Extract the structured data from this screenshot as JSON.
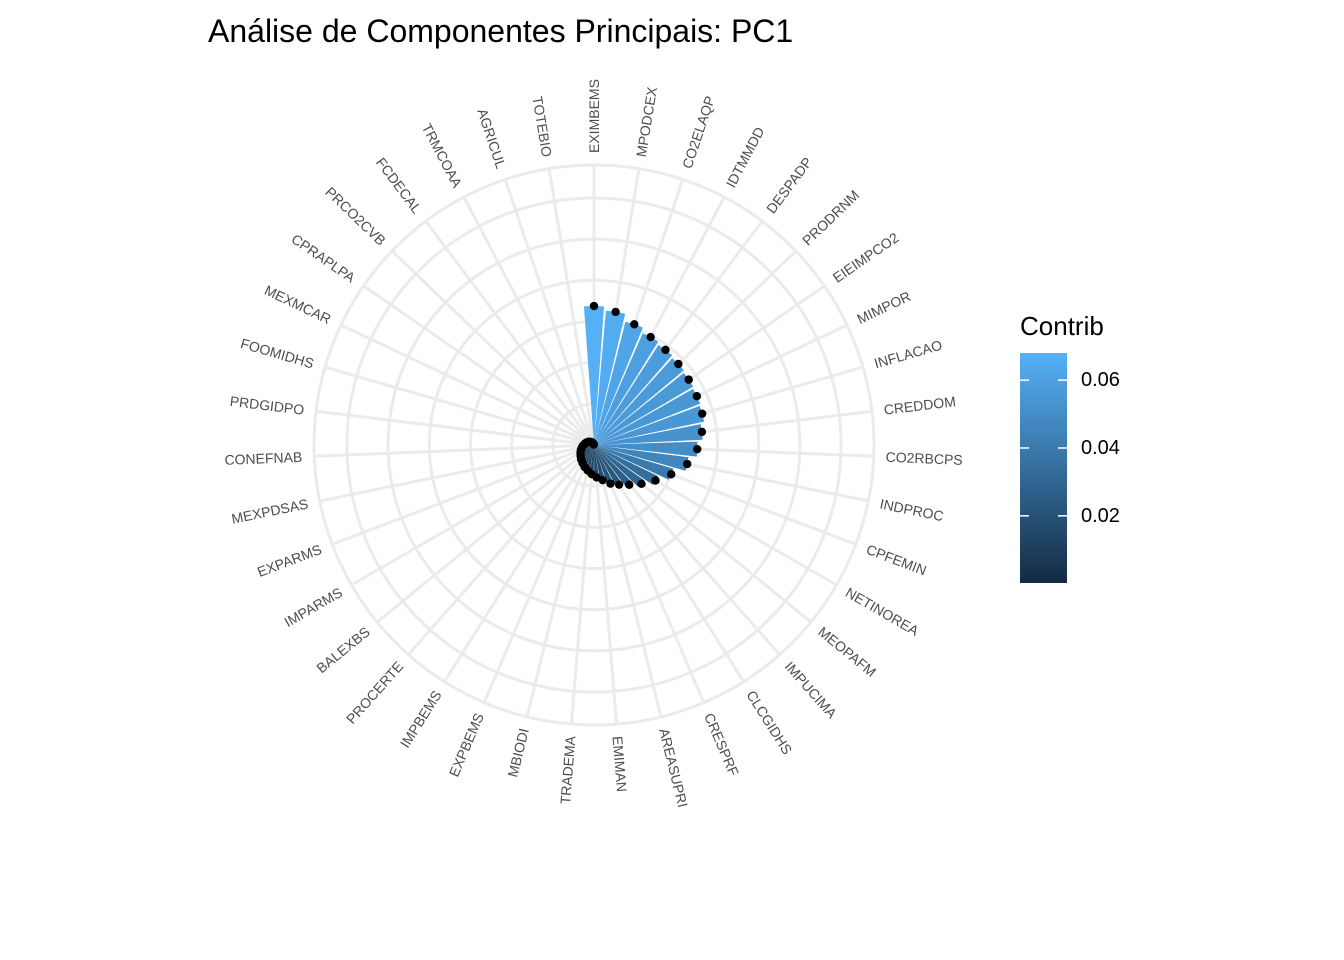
{
  "chart_data": {
    "type": "bar",
    "coord": "polar",
    "title": "Análise de Componentes Principais: PC1",
    "legend": {
      "title": "Contrib",
      "placement": "right",
      "ticks": [
        0.06,
        0.04,
        0.02
      ],
      "range": [
        0.0002,
        0.068
      ]
    },
    "grid": true,
    "ylim": [
      0,
      0.136
    ],
    "colors": {
      "low": "#132b43",
      "high": "#56b1f7",
      "point": "#000000",
      "grid": "#ebebeb",
      "label": "#4d4d4d"
    },
    "categories": [
      "EXIMBEMS",
      "MPODCEX",
      "CO2ELAQP",
      "IDTMMDD",
      "DESPADP",
      "PRODRNM",
      "EIEIMPCO2",
      "MIMPOR",
      "INFLACAO",
      "CREDDOM",
      "CO2RBCPS",
      "INDPROC",
      "CPFEMIN",
      "NETINOREA",
      "MEOPAFM",
      "IMPUCIMA",
      "CLCGIDHS",
      "CRESPRF",
      "AREASUPRI",
      "EMIMAN",
      "TRADEMA",
      "MBIODI",
      "EXPBEMS",
      "IMPBEMS",
      "PROCERTE",
      "BALEXBS",
      "IMPARMS",
      "EXPARMS",
      "MEXPDSAS",
      "CONEFNAB",
      "PRDGIDPO",
      "FOOMIDHS",
      "MEXMCAR",
      "CPRAPLPA",
      "PRCO2CVB",
      "FCDECAL",
      "TRMCOAA",
      "AGRICUL",
      "TOTEBIO"
    ],
    "values": [
      0.0675,
      0.0655,
      0.0618,
      0.0592,
      0.0578,
      0.0568,
      0.0559,
      0.0553,
      0.0547,
      0.0528,
      0.0502,
      0.0462,
      0.0401,
      0.0345,
      0.0298,
      0.0258,
      0.0228,
      0.0204,
      0.0176,
      0.0158,
      0.0142,
      0.0128,
      0.0116,
      0.0104,
      0.0094,
      0.0084,
      0.0076,
      0.0068,
      0.006,
      0.0053,
      0.0046,
      0.004,
      0.0034,
      0.0028,
      0.0022,
      0.0016,
      0.001,
      0.0006,
      0.0002
    ]
  }
}
